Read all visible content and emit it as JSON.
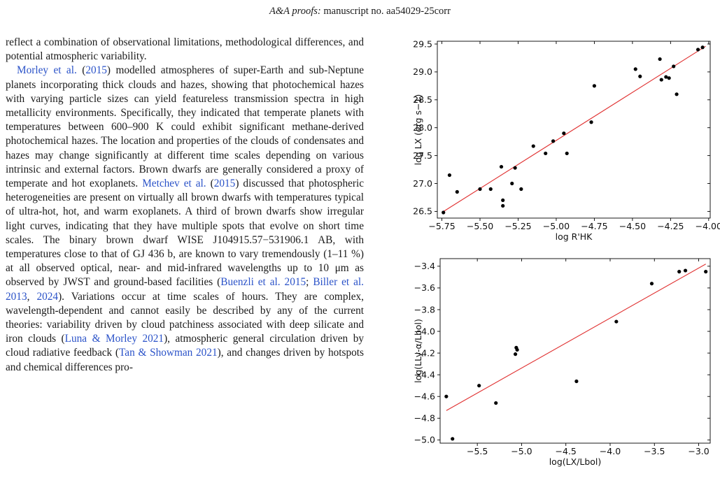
{
  "header": {
    "journal": "A&A proofs:",
    "rest": " manuscript no. aa54029-25corr"
  },
  "body_text": {
    "p1": "reflect a combination of observational limitations, methodological differences, and potential atmospheric variability.",
    "p2_parts": [
      {
        "t": "Morley et al.",
        "link": true
      },
      {
        "t": " (",
        "link": false
      },
      {
        "t": "2015",
        "link": true
      },
      {
        "t": ") modelled atmospheres of super-Earth and sub-Neptune planets incorporating thick clouds and hazes, showing that photochemical hazes with varying particle sizes can yield featureless transmission spectra in high metallicity environments. Specifically, they indicated that temperate planets with temperatures between 600–900 K could exhibit significant methane-derived photochemical hazes. The location and properties of the clouds of condensates and hazes may change significantly at different time scales depending on various intrinsic and external factors. Brown dwarfs are generally considered a proxy of temperate and hot exoplanets. ",
        "link": false
      },
      {
        "t": "Metchev et al.",
        "link": true
      },
      {
        "t": " (",
        "link": false
      },
      {
        "t": "2015",
        "link": true
      },
      {
        "t": ") discussed that photospheric heterogeneities are present on virtually all brown dwarfs with temperatures typical of ultra-hot, hot, and warm exoplanets. A third of brown dwarfs show irregular light curves, indicating that they have multiple spots that evolve on short time scales. The binary brown dwarf WISE J104915.57−531906.1 AB, with temperatures close to that of GJ 436 b, are known to vary tremendously (1–11 %) at all observed optical, near- and mid-infrared wavelengths up to 10 μm as observed by JWST and ground-based facilities (",
        "link": false
      },
      {
        "t": "Buenzli et al. 2015",
        "link": true
      },
      {
        "t": "; ",
        "link": false
      },
      {
        "t": "Biller et al. 2013",
        "link": true
      },
      {
        "t": ", ",
        "link": false
      },
      {
        "t": "2024",
        "link": true
      },
      {
        "t": "). Variations occur at time scales of hours. They are complex, wavelength-dependent and cannot easily be described by any of the current theories: variability driven by cloud patchiness associated with deep silicate and iron clouds (",
        "link": false
      },
      {
        "t": "Luna & Morley 2021",
        "link": true
      },
      {
        "t": "), atmospheric general circulation driven by cloud radiative feedback (",
        "link": false
      },
      {
        "t": "Tan & Showman 2021",
        "link": true
      },
      {
        "t": "), and changes driven by hotspots and chemical differences pro-",
        "link": false
      }
    ]
  },
  "chart_data": [
    {
      "type": "scatter",
      "xlabel": "log R'HK",
      "ylabel": "log LX (erg s−1)",
      "xlim": [
        -5.78,
        -3.99
      ],
      "ylim": [
        26.38,
        29.55
      ],
      "xticks": [
        -5.75,
        -5.5,
        -5.25,
        -5.0,
        -4.75,
        -4.5,
        -4.25,
        -4.0
      ],
      "xtick_labels": [
        "−5.75",
        "−5.50",
        "−5.25",
        "−5.00",
        "−4.75",
        "−4.50",
        "−4.25",
        "−4.00"
      ],
      "yticks": [
        26.5,
        27.0,
        27.5,
        28.0,
        28.5,
        29.0,
        29.5
      ],
      "ytick_labels": [
        "26.5",
        "27.0",
        "27.5",
        "28.0",
        "28.5",
        "29.0",
        "29.5"
      ],
      "points": [
        [
          -5.74,
          26.48
        ],
        [
          -5.7,
          27.15
        ],
        [
          -5.65,
          26.85
        ],
        [
          -5.5,
          26.9
        ],
        [
          -5.43,
          26.9
        ],
        [
          -5.36,
          27.3
        ],
        [
          -5.35,
          26.7
        ],
        [
          -5.35,
          26.6
        ],
        [
          -5.29,
          27.0
        ],
        [
          -5.27,
          27.28
        ],
        [
          -5.23,
          26.9
        ],
        [
          -5.15,
          27.67
        ],
        [
          -5.07,
          27.54
        ],
        [
          -5.02,
          27.76
        ],
        [
          -4.95,
          27.9
        ],
        [
          -4.93,
          27.54
        ],
        [
          -4.77,
          28.1
        ],
        [
          -4.75,
          28.75
        ],
        [
          -4.48,
          29.05
        ],
        [
          -4.45,
          28.92
        ],
        [
          -4.32,
          29.23
        ],
        [
          -4.31,
          28.86
        ],
        [
          -4.28,
          28.91
        ],
        [
          -4.26,
          28.89
        ],
        [
          -4.23,
          29.1
        ],
        [
          -4.21,
          28.6
        ],
        [
          -4.07,
          29.4
        ],
        [
          -4.04,
          29.44
        ]
      ],
      "fit": [
        [
          -5.75,
          26.48
        ],
        [
          -4.02,
          29.46
        ]
      ],
      "fit_color": "#e03030",
      "point_color": "#000000"
    },
    {
      "type": "scatter",
      "xlabel": "log(LX/Lbol)",
      "ylabel": "log(LLy-α/Lbol)",
      "xlim": [
        -5.92,
        -2.87
      ],
      "ylim": [
        -5.03,
        -3.33
      ],
      "xticks": [
        -5.5,
        -5.0,
        -4.5,
        -4.0,
        -3.5,
        -3.0
      ],
      "xtick_labels": [
        "−5.5",
        "−5.0",
        "−4.5",
        "−4.0",
        "−3.5",
        "−3.0"
      ],
      "yticks": [
        -5.0,
        -4.8,
        -4.6,
        -4.4,
        -4.2,
        -4.0,
        -3.8,
        -3.6,
        -3.4
      ],
      "ytick_labels": [
        "−5.0",
        "−4.8",
        "−4.6",
        "−4.4",
        "−4.2",
        "−4.0",
        "−3.8",
        "−3.6",
        "−3.4"
      ],
      "points": [
        [
          -5.85,
          -4.6
        ],
        [
          -5.78,
          -4.99
        ],
        [
          -5.48,
          -4.5
        ],
        [
          -5.29,
          -4.66
        ],
        [
          -5.07,
          -4.21
        ],
        [
          -5.06,
          -4.15
        ],
        [
          -5.05,
          -4.17
        ],
        [
          -4.38,
          -4.46
        ],
        [
          -3.93,
          -3.91
        ],
        [
          -3.53,
          -3.56
        ],
        [
          -3.22,
          -3.45
        ],
        [
          -3.15,
          -3.44
        ],
        [
          -2.92,
          -3.45
        ]
      ],
      "fit": [
        [
          -5.85,
          -4.73
        ],
        [
          -2.92,
          -3.38
        ]
      ],
      "fit_color": "#e03030",
      "point_color": "#000000"
    }
  ]
}
